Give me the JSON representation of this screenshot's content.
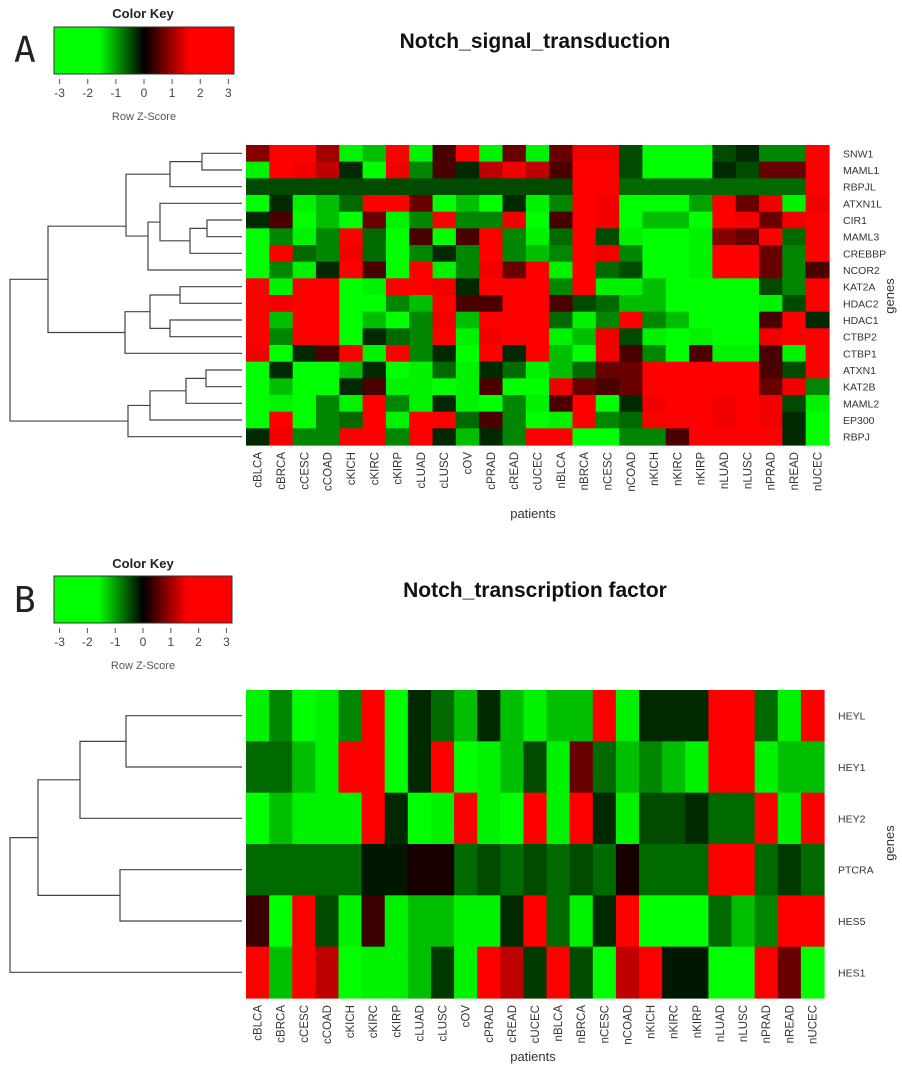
{
  "chart_data": [
    {
      "panel": "A",
      "type": "heatmap",
      "title": "Notch_signal_transduction",
      "xlabel": "patients",
      "ylabel": "genes",
      "color_key": {
        "title": "Color Key",
        "label": "Row Z-Score",
        "ticks": [
          "-3",
          "-2",
          "-1",
          "0",
          "1",
          "2",
          "3"
        ],
        "range": [
          -3.2,
          3.2
        ],
        "colors": {
          "low": "#00ff00",
          "mid": "#000000",
          "high": "#ff0000"
        }
      },
      "columns": [
        "cBLCA",
        "cBRCA",
        "cCESC",
        "cCOAD",
        "cKICH",
        "cKIRC",
        "cKIRP",
        "cLUAD",
        "cLUSC",
        "cOV",
        "cPRAD",
        "cREAD",
        "cUCEC",
        "nBLCA",
        "nBRCA",
        "nCESC",
        "nCOAD",
        "nKICH",
        "nKIRC",
        "nKIRP",
        "nLUAD",
        "nLUSC",
        "nPRAD",
        "nREAD",
        "nUCEC"
      ],
      "rows": [
        "SNW1",
        "MAML1",
        "RBPJL",
        "ATXN1L",
        "CIR1",
        "MAML3",
        "CREBBP",
        "NCOR2",
        "KAT2A",
        "HDAC2",
        "HDAC1",
        "CTBP2",
        "CTBP1",
        "ATXN1",
        "KAT2B",
        "MAML2",
        "EP300",
        "RBPJ"
      ],
      "values": [
        [
          0.8,
          3,
          3,
          1,
          -1.6,
          -1.2,
          3,
          -1.6,
          0.4,
          3,
          -1.6,
          0.6,
          -1.6,
          0.6,
          1.6,
          1.6,
          -0.4,
          -2,
          -3,
          -3,
          -0.4,
          -0.2,
          -0.8,
          -0.8,
          3
        ],
        [
          -1.6,
          3,
          1.6,
          1.2,
          -0.2,
          -2,
          1.6,
          -0.8,
          0.4,
          -0.2,
          1.2,
          1.6,
          1.2,
          0.4,
          3,
          3,
          -0.4,
          -2,
          -3,
          -3,
          -0.2,
          -0.4,
          0.6,
          0.6,
          3
        ],
        [
          -0.4,
          -0.4,
          -0.4,
          -0.4,
          -0.4,
          -0.4,
          -0.4,
          -0.4,
          -0.4,
          -0.4,
          -0.4,
          -0.4,
          -0.4,
          -0.4,
          3,
          3,
          -0.6,
          -0.6,
          -0.6,
          -0.6,
          -0.6,
          -0.6,
          -0.6,
          -0.6,
          3
        ],
        [
          -2,
          -0.2,
          -1.6,
          -1.2,
          -0.6,
          3,
          3,
          0.6,
          -2,
          -1.2,
          -2,
          -0.2,
          -1.6,
          -0.8,
          3,
          1.6,
          -2,
          -3,
          -2,
          -1,
          3,
          0.6,
          1.6,
          -1.6,
          1.6
        ],
        [
          -0.2,
          0.4,
          -2,
          -1.2,
          -3,
          0.6,
          -1.6,
          -0.8,
          2,
          -0.8,
          -0.8,
          1.6,
          -2,
          0.4,
          3,
          1.6,
          -2,
          -1.2,
          -1.2,
          -2,
          3,
          1.6,
          0.6,
          1.6,
          3
        ],
        [
          -2,
          -0.8,
          -1.6,
          -0.8,
          3,
          -0.6,
          -3,
          0.4,
          -2.2,
          0.4,
          3,
          -0.8,
          -1.6,
          -0.6,
          3,
          -0.4,
          -1.6,
          -3,
          -3,
          -1.6,
          0.8,
          0.6,
          3,
          -0.6,
          3
        ],
        [
          -3,
          3,
          -0.6,
          -0.8,
          1.6,
          -0.6,
          -3,
          -0.8,
          -0.2,
          -0.8,
          3,
          -0.8,
          -1.2,
          -0.8,
          3,
          1.6,
          -0.8,
          -3,
          -3,
          -1.6,
          3,
          3,
          0.6,
          -0.8,
          3
        ],
        [
          -3,
          -0.8,
          -1.6,
          -0.2,
          3,
          0.4,
          -3,
          3,
          -1.6,
          -0.8,
          1.6,
          0.6,
          3,
          -1.6,
          3,
          -0.6,
          -0.4,
          -3,
          -3,
          -1.6,
          3,
          3,
          0.6,
          -0.8,
          0.4
        ],
        [
          3,
          -1.6,
          3,
          3,
          -3,
          -1.6,
          3,
          3,
          1.6,
          -0.2,
          3,
          3,
          3,
          -0.8,
          3,
          -1.6,
          -1.6,
          -1.2,
          -3,
          -3,
          -3,
          -3,
          -0.4,
          -0.8,
          3
        ],
        [
          3,
          1.6,
          3,
          3,
          -3,
          -2,
          -0.8,
          -1.2,
          3,
          0.4,
          0.4,
          3,
          3,
          0.4,
          -0.4,
          -0.6,
          -1.2,
          -1.2,
          -2,
          -3,
          -3,
          -3,
          -1.6,
          -0.4,
          3
        ],
        [
          3,
          -1.2,
          3,
          3,
          -3,
          -1.2,
          -3,
          -0.8,
          1.6,
          -1.2,
          3,
          3,
          3,
          -0.6,
          -1.6,
          -0.8,
          3,
          -0.8,
          -1.2,
          -3,
          -3,
          -3,
          0.4,
          3,
          -0.2
        ],
        [
          3,
          -0.8,
          3,
          3,
          -3,
          -0.2,
          -0.6,
          -0.8,
          3,
          -1.6,
          1.6,
          3,
          3,
          -1.6,
          -1.2,
          1.6,
          -0.4,
          -1.6,
          -3,
          -1.6,
          -3,
          -3,
          1.6,
          3,
          3
        ],
        [
          1.6,
          -3,
          -0.2,
          0.4,
          3,
          -1.6,
          3,
          -0.8,
          -0.2,
          -3,
          3,
          -0.2,
          3,
          -1.2,
          -3,
          1.6,
          0.4,
          -0.8,
          -3,
          0.4,
          -1.6,
          -1.6,
          0.4,
          -1.6,
          3
        ],
        [
          -3,
          -0.2,
          -3,
          -3,
          -1.2,
          -0.2,
          -2,
          -1.6,
          -0.6,
          -1.6,
          -0.2,
          -0.6,
          -1.6,
          -1.2,
          -0.6,
          0.6,
          0.6,
          3,
          3,
          3,
          3,
          3,
          0.4,
          -0.4,
          3
        ],
        [
          -2,
          -1.2,
          -3,
          -3,
          -0.2,
          0.4,
          -1.6,
          -1.6,
          -3,
          -1.6,
          0.4,
          -3,
          -3,
          1.6,
          0.6,
          0.4,
          0.6,
          3,
          3,
          3,
          3,
          3,
          0.6,
          1.6,
          -0.8
        ],
        [
          -3,
          -1.6,
          -2,
          -0.8,
          -1.6,
          3,
          -0.8,
          -1.6,
          -0.2,
          -1.6,
          -2,
          -0.8,
          -1.6,
          0.4,
          3,
          -2,
          -0.2,
          1.6,
          3,
          3,
          1.6,
          3,
          1.6,
          -0.4,
          -1.6
        ],
        [
          -2,
          3,
          -2,
          -0.8,
          -0.6,
          3,
          -1.6,
          3,
          3,
          -0.6,
          0.4,
          -0.8,
          -2,
          -1.6,
          3,
          -0.8,
          -0.6,
          3,
          3,
          3,
          1.6,
          3,
          1.6,
          -0.2,
          -3
        ],
        [
          -0.2,
          1.6,
          -0.8,
          -0.8,
          3,
          3,
          -0.8,
          3,
          -0.2,
          -1.2,
          -0.2,
          -0.8,
          3,
          3,
          -3,
          -3,
          -0.8,
          -0.8,
          0.4,
          3,
          3,
          3,
          3,
          -0.2,
          -3
        ]
      ]
    },
    {
      "panel": "B",
      "type": "heatmap",
      "title": "Notch_transcription factor",
      "xlabel": "patients",
      "ylabel": "genes",
      "color_key": {
        "title": "Color Key",
        "label": "Row Z-Score",
        "ticks": [
          "-3",
          "-2",
          "-1",
          "0",
          "1",
          "2",
          "3"
        ],
        "range": [
          -3.2,
          3.2
        ],
        "colors": {
          "low": "#00ff00",
          "mid": "#000000",
          "high": "#ff0000"
        }
      },
      "columns": [
        "cBLCA",
        "cBRCA",
        "cCESC",
        "cCOAD",
        "cKICH",
        "cKIRC",
        "cKIRP",
        "cLUAD",
        "cLUSC",
        "cOV",
        "cPRAD",
        "cREAD",
        "cUCEC",
        "nBLCA",
        "nBRCA",
        "nCESC",
        "nCOAD",
        "nKICH",
        "nKIRC",
        "nKIRP",
        "nLUAD",
        "nLUSC",
        "nPRAD",
        "nREAD",
        "nUCEC"
      ],
      "rows": [
        "HEYL",
        "HEY1",
        "HEY2",
        "PTCRA",
        "HES5",
        "HES1"
      ],
      "values": [
        [
          -1.6,
          -0.8,
          -2,
          -1.6,
          -0.8,
          3,
          -2.2,
          -0.2,
          -0.6,
          -1.2,
          -0.2,
          -1.2,
          -1.6,
          -1.2,
          -1.2,
          3,
          -1.6,
          -0.2,
          -0.2,
          -0.2,
          3,
          3,
          -0.6,
          -1.6,
          3
        ],
        [
          -0.6,
          -0.6,
          -1.2,
          -1.6,
          3,
          2.4,
          -2,
          -0.2,
          3,
          -2,
          -1.6,
          -1.2,
          -0.4,
          -1.6,
          0.6,
          -0.6,
          -1.2,
          -0.8,
          -1.2,
          -1.6,
          3,
          3,
          -1.6,
          -1.2,
          -1.2
        ],
        [
          -2,
          -1.2,
          -1.6,
          -1.6,
          -1.6,
          2.4,
          -0.2,
          -2,
          -1.6,
          3,
          -1.6,
          -2,
          3,
          -1.6,
          3,
          -0.2,
          -1.6,
          -0.4,
          -0.4,
          -0.2,
          -0.6,
          -0.6,
          3,
          -1.6,
          3
        ],
        [
          -0.6,
          -0.6,
          -0.6,
          -0.6,
          -0.6,
          -0.1,
          -0.1,
          0.1,
          0.1,
          -0.6,
          -0.4,
          -0.6,
          -0.4,
          -0.6,
          -0.4,
          -0.6,
          0.1,
          -0.6,
          -0.6,
          -0.6,
          3,
          3,
          -0.6,
          -0.3,
          -0.6
        ],
        [
          0.3,
          -2,
          3,
          -0.4,
          -1.6,
          0.3,
          -1.6,
          -1.2,
          -1.2,
          -1.6,
          -1.6,
          -0.2,
          3,
          -0.6,
          -1.6,
          -0.2,
          3,
          -2.6,
          -2.6,
          -2.6,
          -0.6,
          -1.2,
          -0.8,
          3,
          3
        ],
        [
          3,
          -1.2,
          3,
          1.2,
          -3,
          -1.6,
          -1.6,
          -1.2,
          -0.3,
          -1.6,
          3,
          1.2,
          -0.3,
          2,
          -0.4,
          -2,
          1.2,
          3,
          -0.1,
          -0.1,
          -3,
          -3,
          3,
          0.6,
          -2
        ]
      ]
    }
  ],
  "panels": {
    "A": {
      "letter": "A"
    },
    "B": {
      "letter": "B"
    }
  },
  "colors": {
    "low": "#00ff00",
    "mid": "#000000",
    "high": "#ff0000",
    "line": "#444444"
  }
}
